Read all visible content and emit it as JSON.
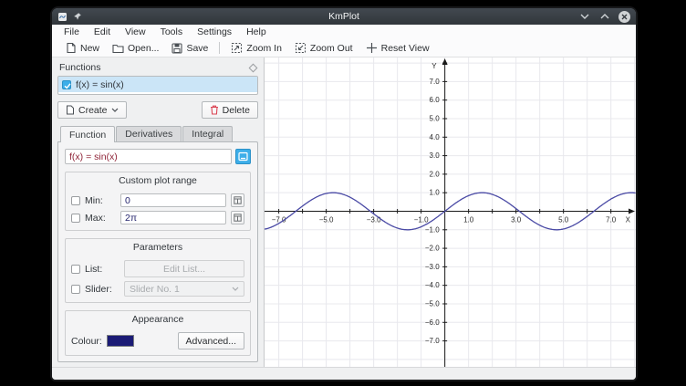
{
  "window": {
    "title": "KmPlot"
  },
  "menu": {
    "items": [
      "File",
      "Edit",
      "View",
      "Tools",
      "Settings",
      "Help"
    ]
  },
  "toolbar": {
    "new": "New",
    "open": "Open...",
    "save": "Save",
    "zoom_in": "Zoom In",
    "zoom_out": "Zoom Out",
    "reset_view": "Reset View"
  },
  "panel": {
    "title": "Functions",
    "list": [
      {
        "label": "f(x) = sin(x)",
        "checked": true,
        "selected": true
      }
    ],
    "create_label": "Create",
    "delete_label": "Delete",
    "tabs": [
      "Function",
      "Derivatives",
      "Integral"
    ],
    "active_tab": "Function",
    "equation": "f(x) = sin(x)",
    "custom_plot_range": {
      "legend": "Custom plot range",
      "min_label": "Min:",
      "min_value": "0",
      "max_label": "Max:",
      "max_value": "2π",
      "min_checked": false,
      "max_checked": false
    },
    "parameters": {
      "legend": "Parameters",
      "list_label": "List:",
      "edit_list_label": "Edit List...",
      "slider_label": "Slider:",
      "slider_value": "Slider No. 1",
      "list_checked": false,
      "slider_checked": false
    },
    "appearance": {
      "legend": "Appearance",
      "colour_label": "Colour:",
      "colour_value": "#1b1b75",
      "advanced_label": "Advanced..."
    }
  },
  "chart_data": {
    "type": "line",
    "title": "",
    "function": "f(x) = sin(x)",
    "expr": "sin",
    "xlabel": "X",
    "ylabel": "Y",
    "x_range": [
      -7.6,
      8.05
    ],
    "y_range": [
      -8.4,
      8.3
    ],
    "tick_step": 1,
    "x_tick_labels": [
      -7.0,
      -5.0,
      -3.0,
      -1.0,
      1.0,
      3.0,
      5.0,
      7.0
    ],
    "y_tick_labels": [
      7.0,
      6.0,
      5.0,
      4.0,
      3.0,
      2.0,
      1.0,
      -1.0,
      -2.0,
      -3.0,
      -4.0,
      -5.0,
      -6.0,
      -7.0
    ],
    "grid": true,
    "grid_color": "#e8e8ed",
    "axis_color": "#1a1a1a",
    "label_color": "#2a2a2a",
    "series": [
      {
        "name": "f(x) = sin(x)",
        "color": "#4a4aa5",
        "amplitude": 1,
        "period": 6.283
      }
    ]
  }
}
